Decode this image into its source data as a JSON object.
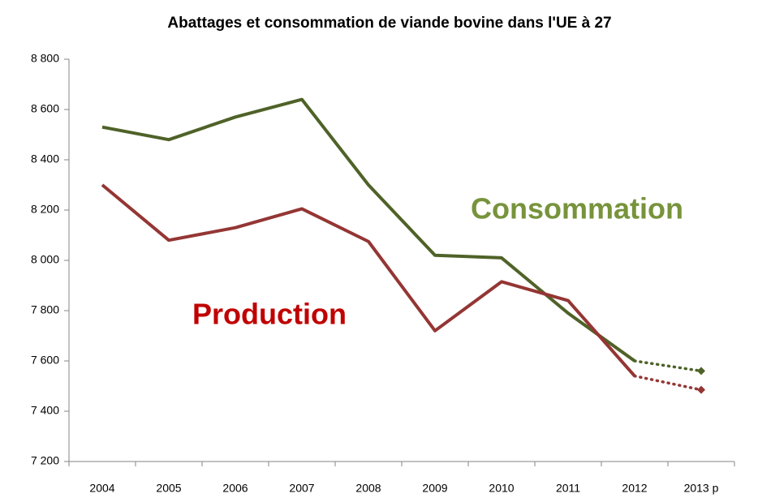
{
  "chart_data": {
    "type": "line",
    "title": "Abattages et consommation de viande bovine dans l'UE à 27",
    "categories": [
      "2004",
      "2005",
      "2006",
      "2007",
      "2008",
      "2009",
      "2010",
      "2011",
      "2012",
      "2013 p"
    ],
    "series": [
      {
        "name": "Consommation",
        "color": "#4f6228",
        "label_color": "#77933c",
        "values": [
          8530,
          8480,
          8570,
          8640,
          8300,
          8020,
          8010,
          7790,
          7600,
          7560
        ]
      },
      {
        "name": "Production",
        "color": "#943634",
        "label_color": "#c00000",
        "values": [
          8300,
          8080,
          8130,
          8205,
          8075,
          7720,
          7915,
          7840,
          7540,
          7485
        ]
      }
    ],
    "dotted_last_segment": true,
    "ylim": [
      7200,
      8800
    ],
    "yticks": [
      {
        "value": 7200,
        "label": "7 200"
      },
      {
        "value": 7400,
        "label": "7 400"
      },
      {
        "value": 7600,
        "label": "7 600"
      },
      {
        "value": 7800,
        "label": "7 800"
      },
      {
        "value": 8000,
        "label": "8 000"
      },
      {
        "value": 8200,
        "label": "8 200"
      },
      {
        "value": 8400,
        "label": "8 400"
      },
      {
        "value": 8600,
        "label": "8 600"
      },
      {
        "value": 8800,
        "label": "8 800"
      }
    ],
    "grid": false
  }
}
